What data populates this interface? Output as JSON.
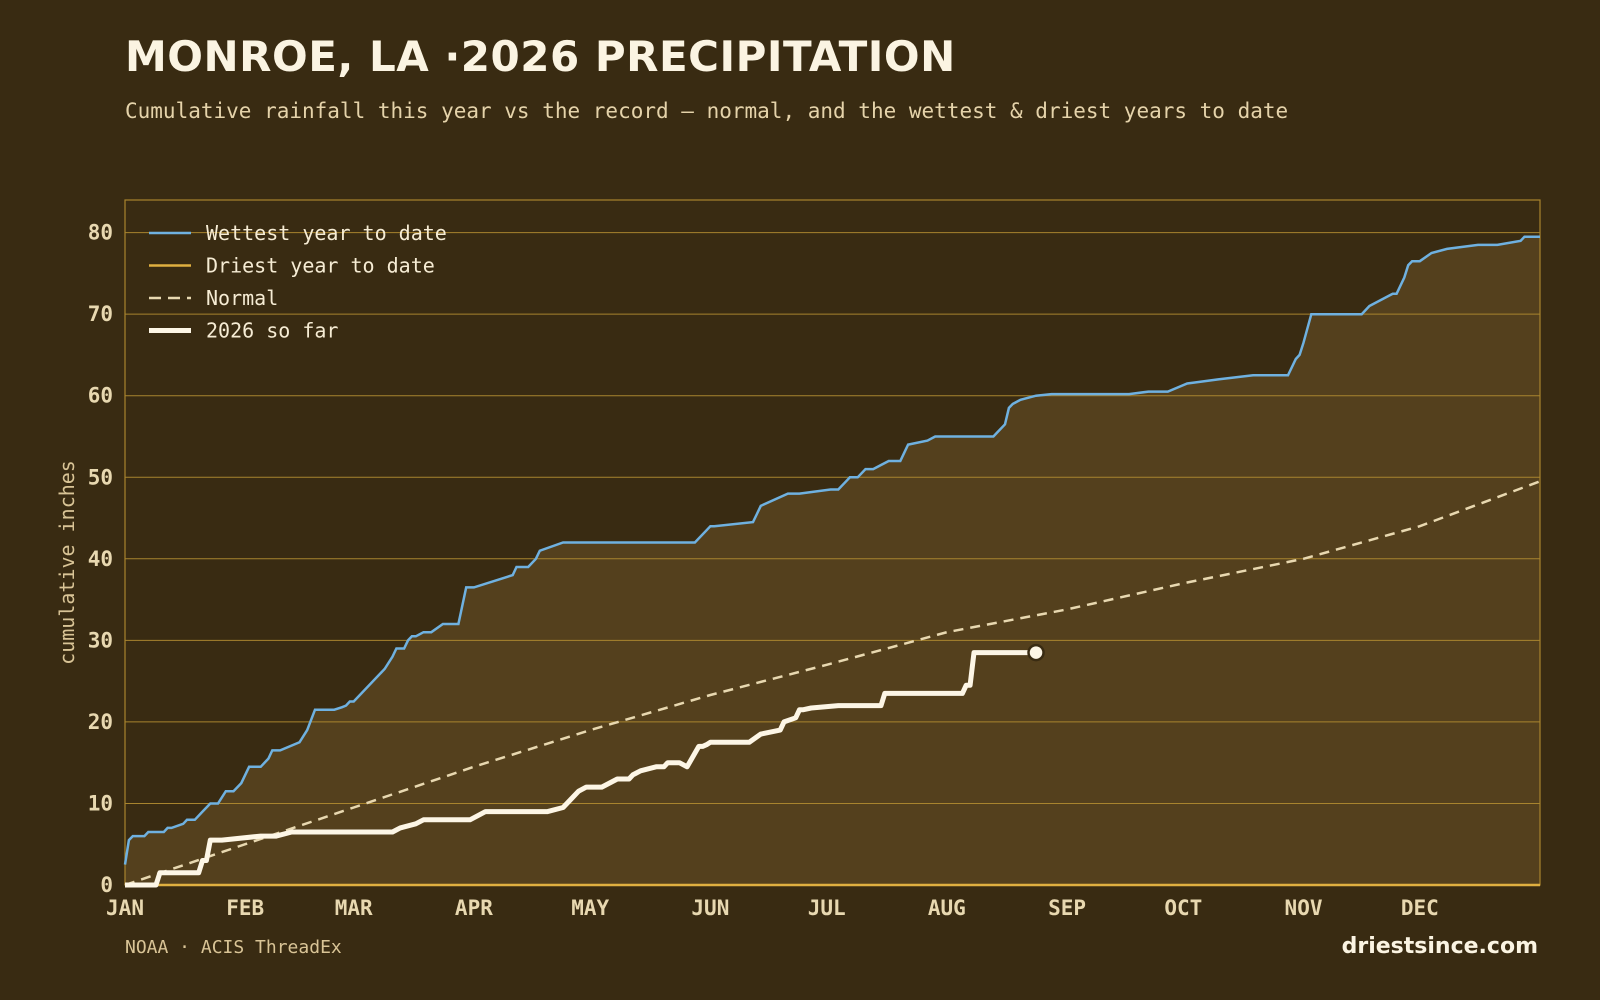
{
  "header": {
    "title": "MONROE, LA ·2026 PRECIPITATION",
    "subtitle": "Cumulative rainfall this year vs the record — normal, and the wettest & driest years to date"
  },
  "footer": {
    "source": "NOAA · ACIS ThreadEx",
    "brand": "driestsince.com"
  },
  "colors": {
    "background": "#392b12",
    "band_fill": "#54401d",
    "gridline": "#a8842e",
    "wettest": "#6fb1e0",
    "driest": "#e0b040",
    "normal": "#e8d8b0",
    "current": "#fdf6e6",
    "tick_text": "#e8d8b0"
  },
  "chart_data": {
    "type": "line",
    "title": "MONROE, LA ·2026 PRECIPITATION",
    "subtitle": "Cumulative rainfall this year vs the record — normal, and the wettest & driest years to date",
    "ylabel": "cumulative inches",
    "xlabel": "",
    "x_unit": "day of year",
    "xlim": [
      1,
      366
    ],
    "ylim": [
      0,
      84
    ],
    "yticks": [
      0,
      10,
      20,
      30,
      40,
      50,
      60,
      70,
      80
    ],
    "xtick_labels": [
      "JAN",
      "FEB",
      "MAR",
      "APR",
      "MAY",
      "JUN",
      "JUL",
      "AUG",
      "SEP",
      "OCT",
      "NOV",
      "DEC"
    ],
    "xtick_days": [
      1,
      32,
      60,
      91,
      121,
      152,
      182,
      213,
      244,
      274,
      305,
      335
    ],
    "grid": "horizontal",
    "legend_position": "top-left",
    "band_between": [
      "Driest year to date",
      "Wettest year to date"
    ],
    "series": [
      {
        "name": "Wettest year to date",
        "style": "solid",
        "x": [
          1,
          2,
          3,
          6,
          7,
          11,
          12,
          13,
          16,
          17,
          19,
          21,
          23,
          25,
          27,
          29,
          31,
          33,
          36,
          38,
          39,
          41,
          46,
          48,
          50,
          55,
          57,
          58,
          59,
          60,
          68,
          70,
          70.5,
          71,
          73,
          74,
          75,
          76,
          78,
          80,
          83,
          84,
          87,
          89,
          91,
          101,
          102,
          103,
          105,
          107,
          108,
          114,
          115,
          117,
          118,
          140,
          148,
          152,
          153,
          163,
          164,
          165,
          172,
          173,
          174,
          175,
          183,
          185,
          187,
          188,
          190,
          192,
          194,
          196,
          198,
          199,
          201,
          202,
          203,
          208,
          210,
          225,
          226,
          228,
          229,
          230,
          232,
          236,
          240,
          250,
          260,
          265,
          270,
          275,
          283,
          292,
          301,
          303,
          304,
          305,
          307,
          320,
          322,
          328,
          329,
          331,
          332,
          333,
          335,
          338,
          342,
          350,
          355,
          361,
          362,
          366
        ],
        "y": [
          2.5,
          5.5,
          6.0,
          6.0,
          6.5,
          6.5,
          7.0,
          7.0,
          7.5,
          8.0,
          8.0,
          9.0,
          10.0,
          10.0,
          11.5,
          11.5,
          12.5,
          14.5,
          14.5,
          15.5,
          16.5,
          16.5,
          17.5,
          19.0,
          21.5,
          21.5,
          21.8,
          22.0,
          22.5,
          22.5,
          26.5,
          28.0,
          28.5,
          29.0,
          29.0,
          30.0,
          30.5,
          30.5,
          31.0,
          31.0,
          32.0,
          32.0,
          32.0,
          36.5,
          36.5,
          38.0,
          39.0,
          39.0,
          39.0,
          40.0,
          41.0,
          42.0,
          42.0,
          42.0,
          42.0,
          42.0,
          42.0,
          44.0,
          44.0,
          44.5,
          45.5,
          46.5,
          48.0,
          48.0,
          48.0,
          48.0,
          48.5,
          48.5,
          49.5,
          50.0,
          50.0,
          51.0,
          51.0,
          51.5,
          52.0,
          52.0,
          52.0,
          53.0,
          54.0,
          54.5,
          55.0,
          55.0,
          55.5,
          56.5,
          58.5,
          59.0,
          59.5,
          60.0,
          60.2,
          60.2,
          60.2,
          60.5,
          60.5,
          61.5,
          62.0,
          62.5,
          62.5,
          64.5,
          65.0,
          66.5,
          70.0,
          70.0,
          71.0,
          72.5,
          72.5,
          74.5,
          76.0,
          76.5,
          76.5,
          77.5,
          78.0,
          78.5,
          78.5,
          79.0,
          79.5,
          79.5
        ]
      },
      {
        "name": "Driest year to date",
        "style": "solid",
        "x": [
          1,
          366
        ],
        "y": [
          0,
          0
        ]
      },
      {
        "name": "Normal",
        "style": "dashed",
        "x": [
          1,
          32,
          60,
          91,
          121,
          152,
          182,
          213,
          244,
          274,
          305,
          335,
          366
        ],
        "y": [
          0.0,
          5.0,
          9.5,
          14.5,
          19.0,
          23.3,
          27.0,
          31.0,
          33.8,
          37.0,
          40.0,
          44.0,
          49.5
        ]
      },
      {
        "name": "2026 so far",
        "style": "thick",
        "x": [
          1,
          9,
          10,
          12,
          20,
          21,
          22,
          23,
          24,
          26,
          36,
          40,
          44,
          46,
          70,
          72,
          76,
          78,
          80,
          90,
          92,
          94,
          100,
          110,
          114,
          116,
          118,
          120,
          122,
          124,
          128,
          131,
          132,
          134,
          138,
          140,
          141,
          144,
          146,
          149,
          150,
          151,
          152,
          155,
          158,
          162,
          165,
          170,
          171,
          174,
          175,
          176,
          178,
          185,
          190,
          196,
          197,
          198,
          200,
          212,
          217,
          218,
          219,
          220,
          236
        ],
        "y": [
          0,
          0,
          1.5,
          1.5,
          1.5,
          3.0,
          3.0,
          5.5,
          5.5,
          5.5,
          6.0,
          6.0,
          6.5,
          6.5,
          6.5,
          7.0,
          7.5,
          8.0,
          8.0,
          8.0,
          8.5,
          9.0,
          9.0,
          9.0,
          9.5,
          10.5,
          11.5,
          12.0,
          12.0,
          12.0,
          13.0,
          13.0,
          13.5,
          14.0,
          14.5,
          14.5,
          15.0,
          15.0,
          14.5,
          17.0,
          17.0,
          17.2,
          17.5,
          17.5,
          17.5,
          17.5,
          18.5,
          19.0,
          20.0,
          20.5,
          21.5,
          21.5,
          21.7,
          22.0,
          22.0,
          22.0,
          23.5,
          23.5,
          23.5,
          23.5,
          23.5,
          24.5,
          24.5,
          28.5,
          28.5
        ],
        "endpoint_marker": true
      }
    ]
  }
}
